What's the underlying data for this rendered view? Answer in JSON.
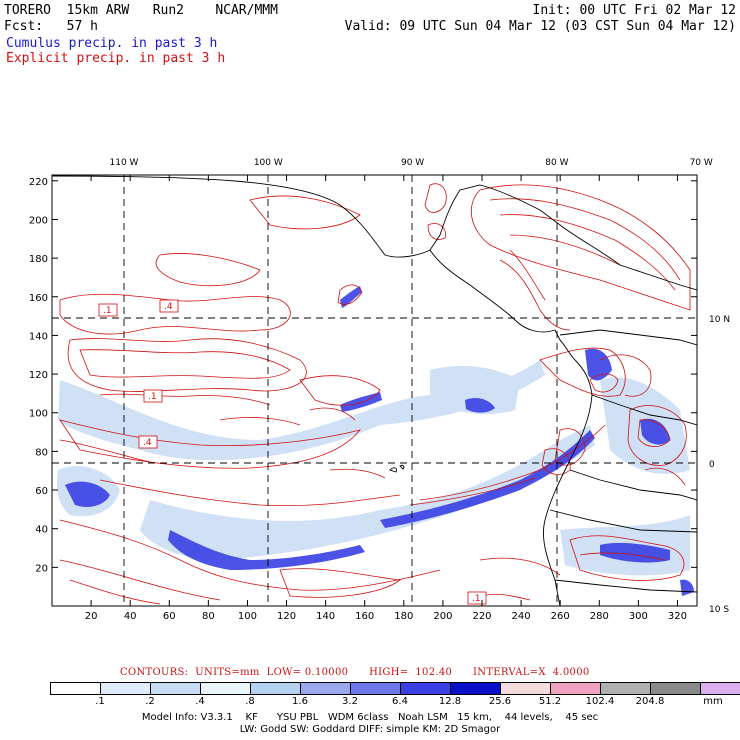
{
  "header": {
    "model": "TORERO  15km ARW   Run2    NCAR/MMM",
    "init": "Init: 00 UTC Fri 02 Mar 12",
    "fcst": "Fcst:   57 h",
    "valid": "Valid: 09 UTC Sun 04 Mar 12 (03 CST Sun 04 Mar 12)",
    "cumulus": "Cumulus precip. in past 3 h",
    "explicit": "Explicit precip. in past 3 h"
  },
  "top_lon_labels": [
    {
      "text": "110 W",
      "lon": -110
    },
    {
      "text": "100 W",
      "lon": -100
    },
    {
      "text": "90 W",
      "lon": -90
    },
    {
      "text": "80 W",
      "lon": -80
    },
    {
      "text": "70 W",
      "lon": -70
    }
  ],
  "right_lat_labels": [
    {
      "text": "10 N",
      "lat": 10
    },
    {
      "text": "0",
      "lat": 0
    },
    {
      "text": "10 S",
      "lat": -10
    }
  ],
  "x_ticks": [
    "20",
    "40",
    "60",
    "80",
    "100",
    "120",
    "140",
    "160",
    "180",
    "200",
    "220",
    "240",
    "260",
    "280",
    "300",
    "320"
  ],
  "y_ticks": [
    "20",
    "40",
    "60",
    "80",
    "100",
    "120",
    "140",
    "160",
    "180",
    "200",
    "220"
  ],
  "contour_labels": [
    ".1",
    ".4",
    ".1",
    ".4",
    ".1"
  ],
  "contours_line": {
    "label": "CONTOURS:  UNITS=mm  LOW= 0.10000      HIGH=  102.40      INTERVAL=X  4.0000"
  },
  "colorbar": {
    "colors": [
      "#ffffff",
      "#e0ecfa",
      "#c8dcf4",
      "#eaf6fa",
      "#b4d2f0",
      "#9aa8f0",
      "#6e78ec",
      "#3a40e4",
      "#0a10c8",
      "#f4dcdc",
      "#f0a0c0",
      "#b0b0b0",
      "#8a8a8a",
      "#dcb0f0"
    ],
    "labels": [
      ".1",
      ".2",
      ".4",
      ".8",
      "1.6",
      "3.2",
      "6.4",
      "12.8",
      "25.6",
      "51.2",
      "102.4",
      "204.8"
    ],
    "unit": "mm"
  },
  "footer": {
    "line1": "Model Info: V3.3.1    KF      YSU PBL   WDM 6class   Noah LSM   15 km,    44 levels,    45 sec",
    "line2": "LW: Godd SW: Goddard DIFF: simple KM: 2D Smagor"
  }
}
